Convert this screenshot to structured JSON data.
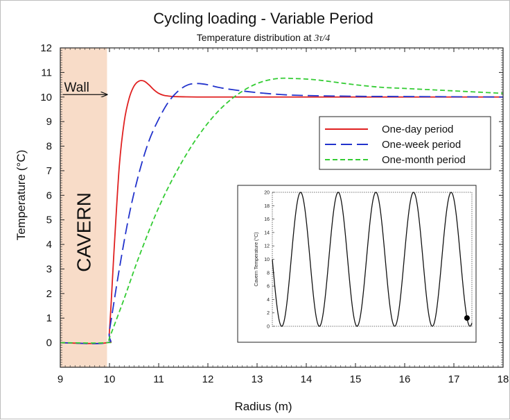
{
  "chart_data": {
    "type": "line",
    "title": "Cycling loading - Variable Period",
    "subtitle_prefix": "Temperature distribution at ",
    "subtitle_math": "3τ/4",
    "xlabel": "Radius (m)",
    "ylabel": "Temperature (°C)",
    "xlim": [
      9,
      18
    ],
    "ylim": [
      -1,
      12
    ],
    "xticks": [
      "9",
      "10",
      "11",
      "12",
      "13",
      "14",
      "15",
      "16",
      "17",
      "18"
    ],
    "yticks": [
      "0",
      "1",
      "2",
      "3",
      "4",
      "5",
      "6",
      "7",
      "8",
      "9",
      "10",
      "11",
      "12"
    ],
    "grid": false,
    "legend_position": "upper-right",
    "cavern_region": {
      "x": [
        9,
        9.95
      ],
      "label": "CAVERN",
      "color": "#f8dcc8"
    },
    "wall_annotation": {
      "label": "Wall",
      "x_from": 9.05,
      "x_to": 9.95,
      "y": 10.1
    },
    "series": [
      {
        "name": "One-day period",
        "color": "#e02020",
        "dash": "solid",
        "x": [
          9,
          9.95,
          10.0,
          10.1,
          10.2,
          10.3,
          10.4,
          10.5,
          10.6,
          10.7,
          10.8,
          10.9,
          11.0,
          11.1,
          11.2,
          11.3,
          11.5,
          12.0,
          13.0,
          14.0,
          16.0,
          18.0
        ],
        "y": [
          0,
          0,
          0.5,
          4.0,
          7.2,
          9.0,
          9.95,
          10.45,
          10.65,
          10.65,
          10.5,
          10.3,
          10.15,
          10.07,
          10.04,
          10.02,
          10.01,
          10.0,
          10.0,
          10.0,
          10.0,
          10.0
        ]
      },
      {
        "name": "One-week period",
        "color": "#2233cc",
        "dash": "long-dash",
        "x": [
          9,
          9.95,
          10.0,
          10.2,
          10.4,
          10.6,
          10.8,
          11.0,
          11.2,
          11.4,
          11.6,
          11.8,
          12.0,
          12.2,
          12.5,
          13.0,
          13.5,
          14.0,
          15.0,
          16.0,
          18.0
        ],
        "y": [
          0,
          0,
          0.5,
          3.0,
          5.2,
          6.9,
          8.2,
          9.1,
          9.8,
          10.25,
          10.5,
          10.55,
          10.5,
          10.4,
          10.3,
          10.18,
          10.1,
          10.06,
          10.03,
          10.02,
          10.0
        ]
      },
      {
        "name": "One-month period",
        "color": "#33cc33",
        "dash": "short-dash",
        "x": [
          9,
          9.95,
          10.0,
          10.3,
          10.6,
          11.0,
          11.4,
          11.8,
          12.2,
          12.6,
          13.0,
          13.4,
          13.8,
          14.2,
          14.6,
          15.0,
          15.5,
          16.0,
          16.5,
          17.0,
          17.5,
          18.0
        ],
        "y": [
          0,
          0,
          0.2,
          1.8,
          3.5,
          5.5,
          7.1,
          8.4,
          9.4,
          10.1,
          10.55,
          10.75,
          10.75,
          10.7,
          10.6,
          10.5,
          10.4,
          10.35,
          10.3,
          10.25,
          10.2,
          10.15
        ]
      }
    ],
    "inset": {
      "type": "line",
      "ylabel": "Cavern Temperature (°C)",
      "yticks": [
        "0",
        "2",
        "4",
        "6",
        "8",
        "10",
        "12",
        "14",
        "16",
        "18",
        "20"
      ],
      "ylim": [
        0,
        20
      ],
      "cycles": 5.3,
      "marker_phase": 5.17,
      "color": "#111111",
      "marker_color": "#000000"
    }
  }
}
